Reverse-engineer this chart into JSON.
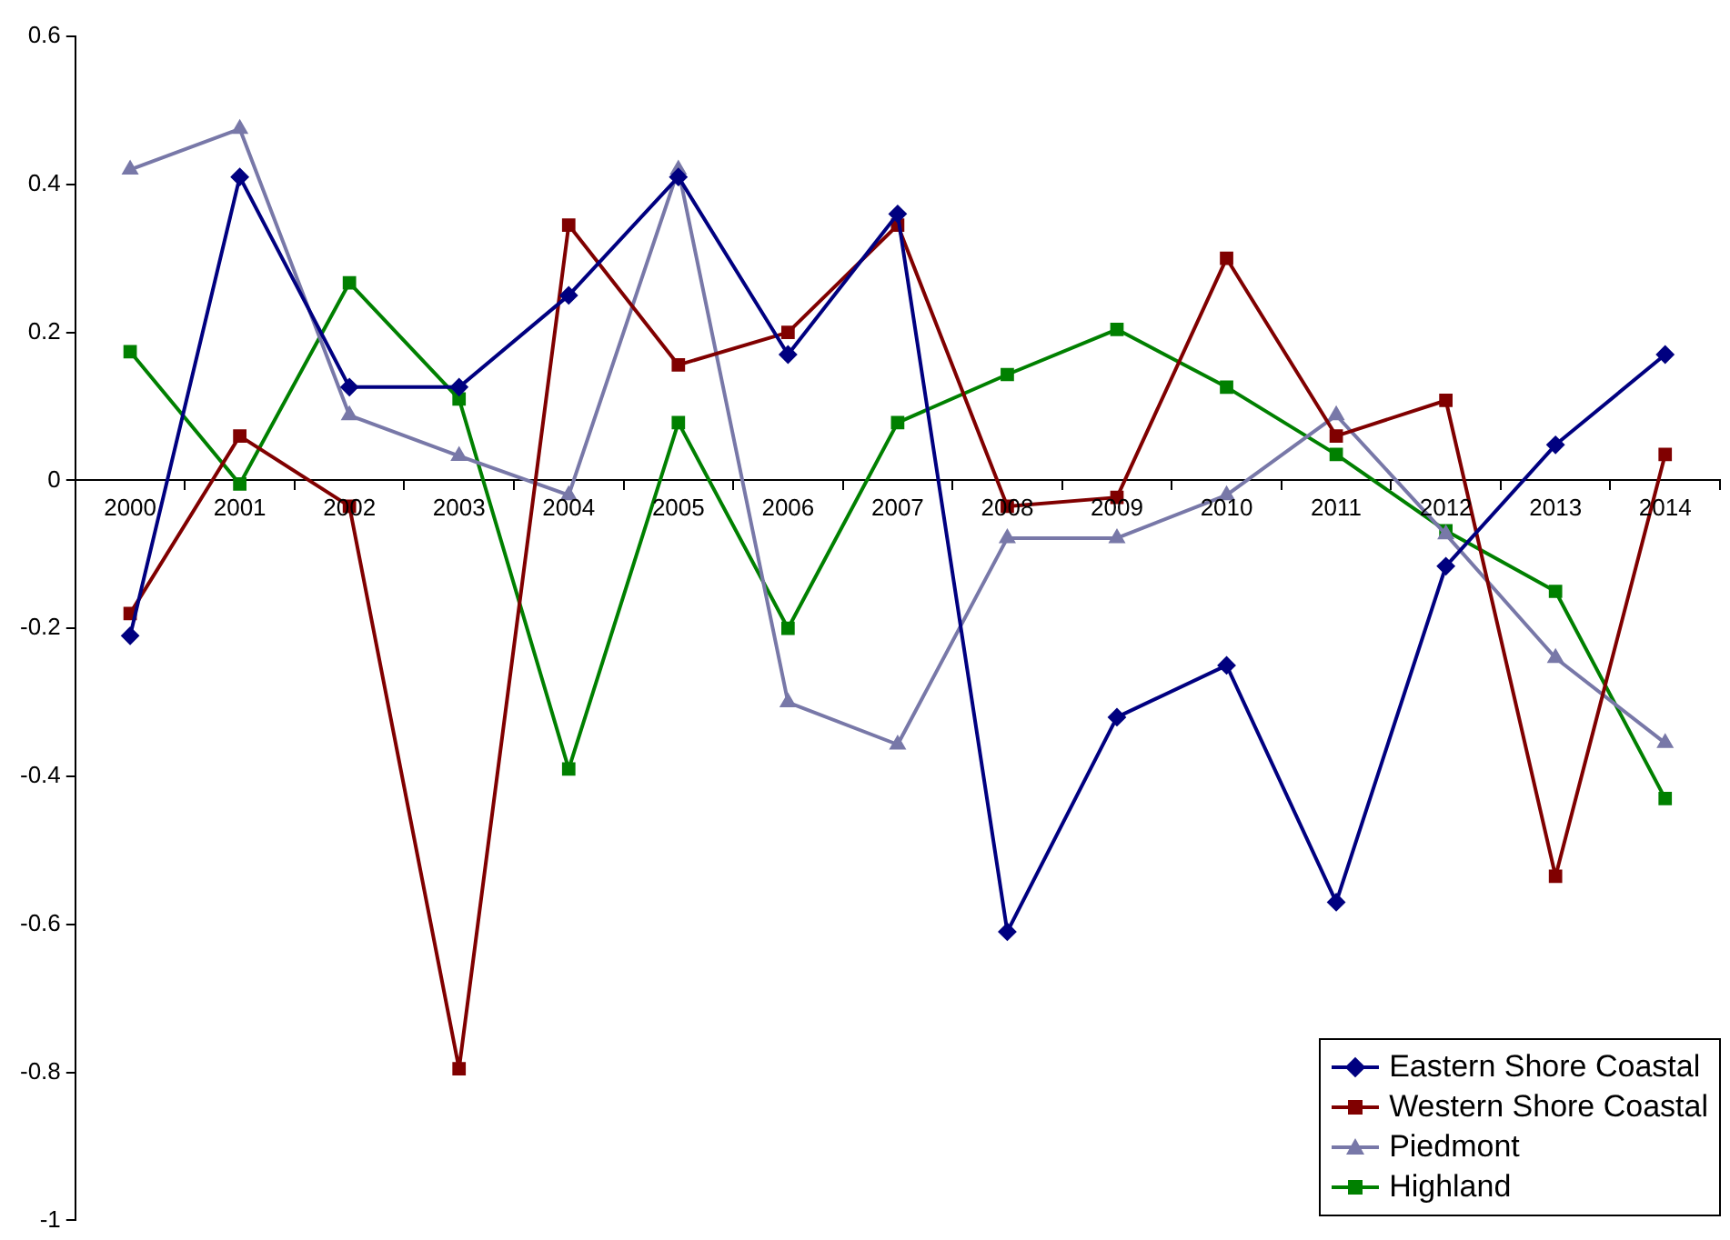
{
  "chart_data": {
    "type": "line",
    "categories": [
      "2000",
      "2001",
      "2002",
      "2003",
      "2004",
      "2005",
      "2006",
      "2007",
      "2008",
      "2009",
      "2010",
      "2011",
      "2012",
      "2013",
      "2014"
    ],
    "series": [
      {
        "name": "Eastern Shore Coastal",
        "color": "#000080",
        "marker": "diamond",
        "values": [
          -0.21,
          0.41,
          0.126,
          0.126,
          0.25,
          0.41,
          0.17,
          0.36,
          -0.61,
          -0.32,
          -0.25,
          -0.57,
          -0.116,
          0.048,
          0.17
        ]
      },
      {
        "name": "Western Shore Coastal",
        "color": "#800000",
        "marker": "square",
        "values": [
          -0.18,
          0.06,
          -0.035,
          -0.795,
          0.345,
          0.156,
          0.2,
          0.345,
          -0.035,
          -0.023,
          0.3,
          0.06,
          0.108,
          -0.535,
          0.035
        ]
      },
      {
        "name": "Piedmont",
        "color": "#7878a8",
        "marker": "triangle",
        "values": [
          0.42,
          0.475,
          0.088,
          0.033,
          -0.02,
          0.42,
          -0.3,
          -0.357,
          -0.078,
          -0.078,
          -0.02,
          0.088,
          -0.073,
          -0.24,
          -0.355
        ]
      },
      {
        "name": "Highland",
        "color": "#008000",
        "marker": "square",
        "values": [
          0.174,
          -0.005,
          0.267,
          0.11,
          -0.39,
          0.078,
          -0.2,
          0.078,
          0.143,
          0.204,
          0.126,
          0.035,
          -0.068,
          -0.15,
          -0.43
        ]
      }
    ],
    "ylim": [
      -1,
      0.6
    ],
    "yticks": [
      -1,
      -0.8,
      -0.6,
      -0.4,
      -0.2,
      0,
      0.2,
      0.4,
      0.6
    ],
    "grid": false,
    "legend": "bottom right"
  }
}
